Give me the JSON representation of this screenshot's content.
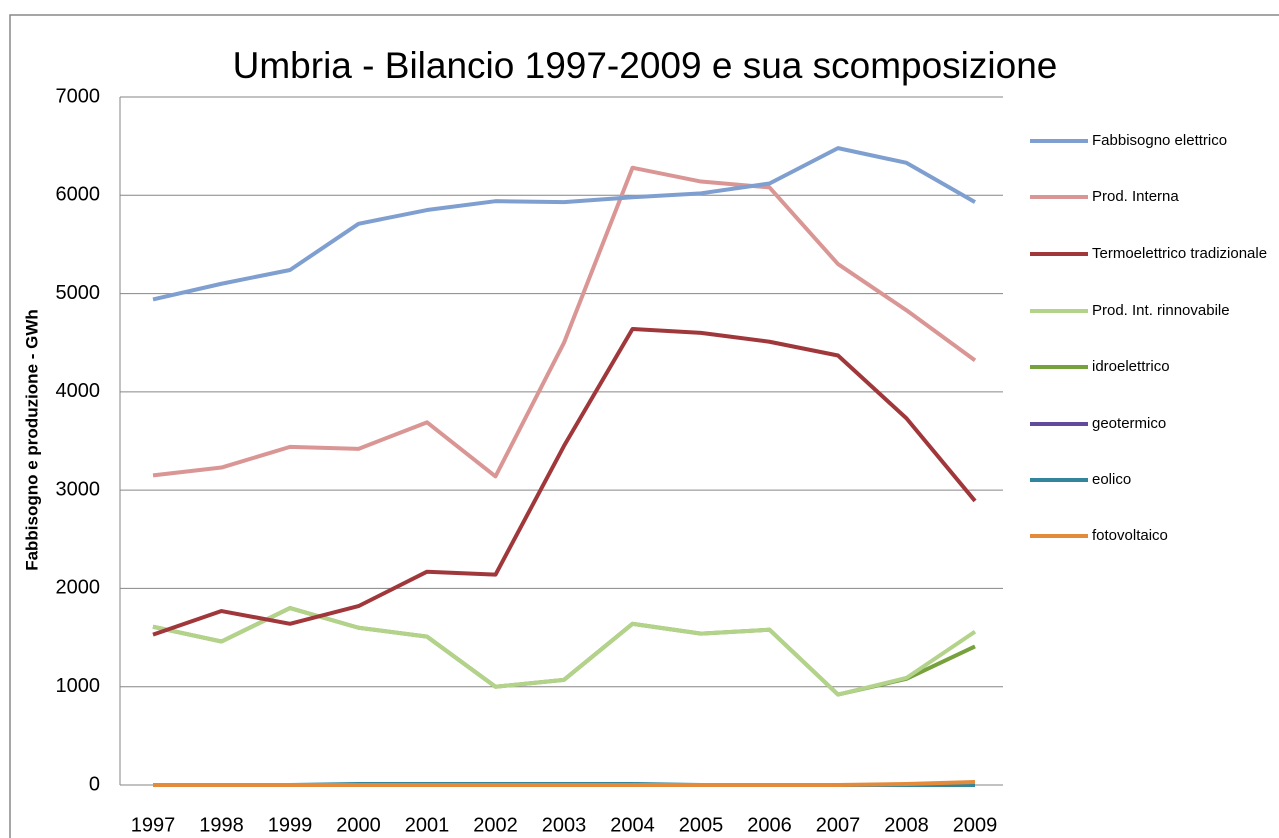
{
  "chart_data": {
    "type": "line",
    "title": "Umbria - Bilancio 1997-2009 e sua scomposizione",
    "y_label": "Fabbisogno e produzione - GWh",
    "categories": [
      "1997",
      "1998",
      "1999",
      "2000",
      "2001",
      "2002",
      "2003",
      "2004",
      "2005",
      "2006",
      "2007",
      "2008",
      "2009"
    ],
    "series": [
      {
        "name": "Fabbisogno elettrico",
        "color": "#7f9fd0",
        "values": [
          4940,
          5100,
          5240,
          5710,
          5850,
          5940,
          5930,
          5980,
          6020,
          6120,
          6480,
          6330,
          5930
        ]
      },
      {
        "name": "Prod. Interna",
        "color": "#d99694",
        "values": [
          3150,
          3230,
          3440,
          3420,
          3690,
          3140,
          4500,
          6280,
          6140,
          6080,
          5300,
          4830,
          4320
        ]
      },
      {
        "name": "Termoelettrico tradizionale",
        "color": "#a0373a",
        "values": [
          1530,
          1770,
          1640,
          1820,
          2170,
          2140,
          3450,
          4640,
          4600,
          4510,
          4370,
          3730,
          2890
        ]
      },
      {
        "name": "Prod. Int. rinnovabile",
        "color": "#b3d38b",
        "values": [
          1610,
          1460,
          1800,
          1600,
          1510,
          1000,
          1070,
          1640,
          1540,
          1580,
          920,
          1090,
          1560
        ]
      },
      {
        "name": "idroelettrico",
        "color": "#77a13d",
        "values": [
          1610,
          1460,
          1800,
          1600,
          1510,
          1000,
          1070,
          1640,
          1540,
          1580,
          920,
          1080,
          1410
        ]
      },
      {
        "name": "geotermico",
        "color": "#604a9b",
        "values": [
          0,
          0,
          0,
          0,
          0,
          0,
          0,
          0,
          0,
          0,
          0,
          0,
          0
        ]
      },
      {
        "name": "eolico",
        "color": "#31859c",
        "values": [
          0,
          0,
          0,
          10,
          10,
          10,
          10,
          10,
          0,
          0,
          0,
          0,
          0
        ]
      },
      {
        "name": "fotovoltaico",
        "color": "#e38b3a",
        "values": [
          0,
          0,
          0,
          0,
          0,
          0,
          0,
          0,
          0,
          0,
          0,
          10,
          30
        ]
      }
    ],
    "ylim": [
      0,
      7000
    ],
    "yticks": [
      0,
      1000,
      2000,
      3000,
      4000,
      5000,
      6000,
      7000
    ],
    "grid": true,
    "legend": "right"
  }
}
